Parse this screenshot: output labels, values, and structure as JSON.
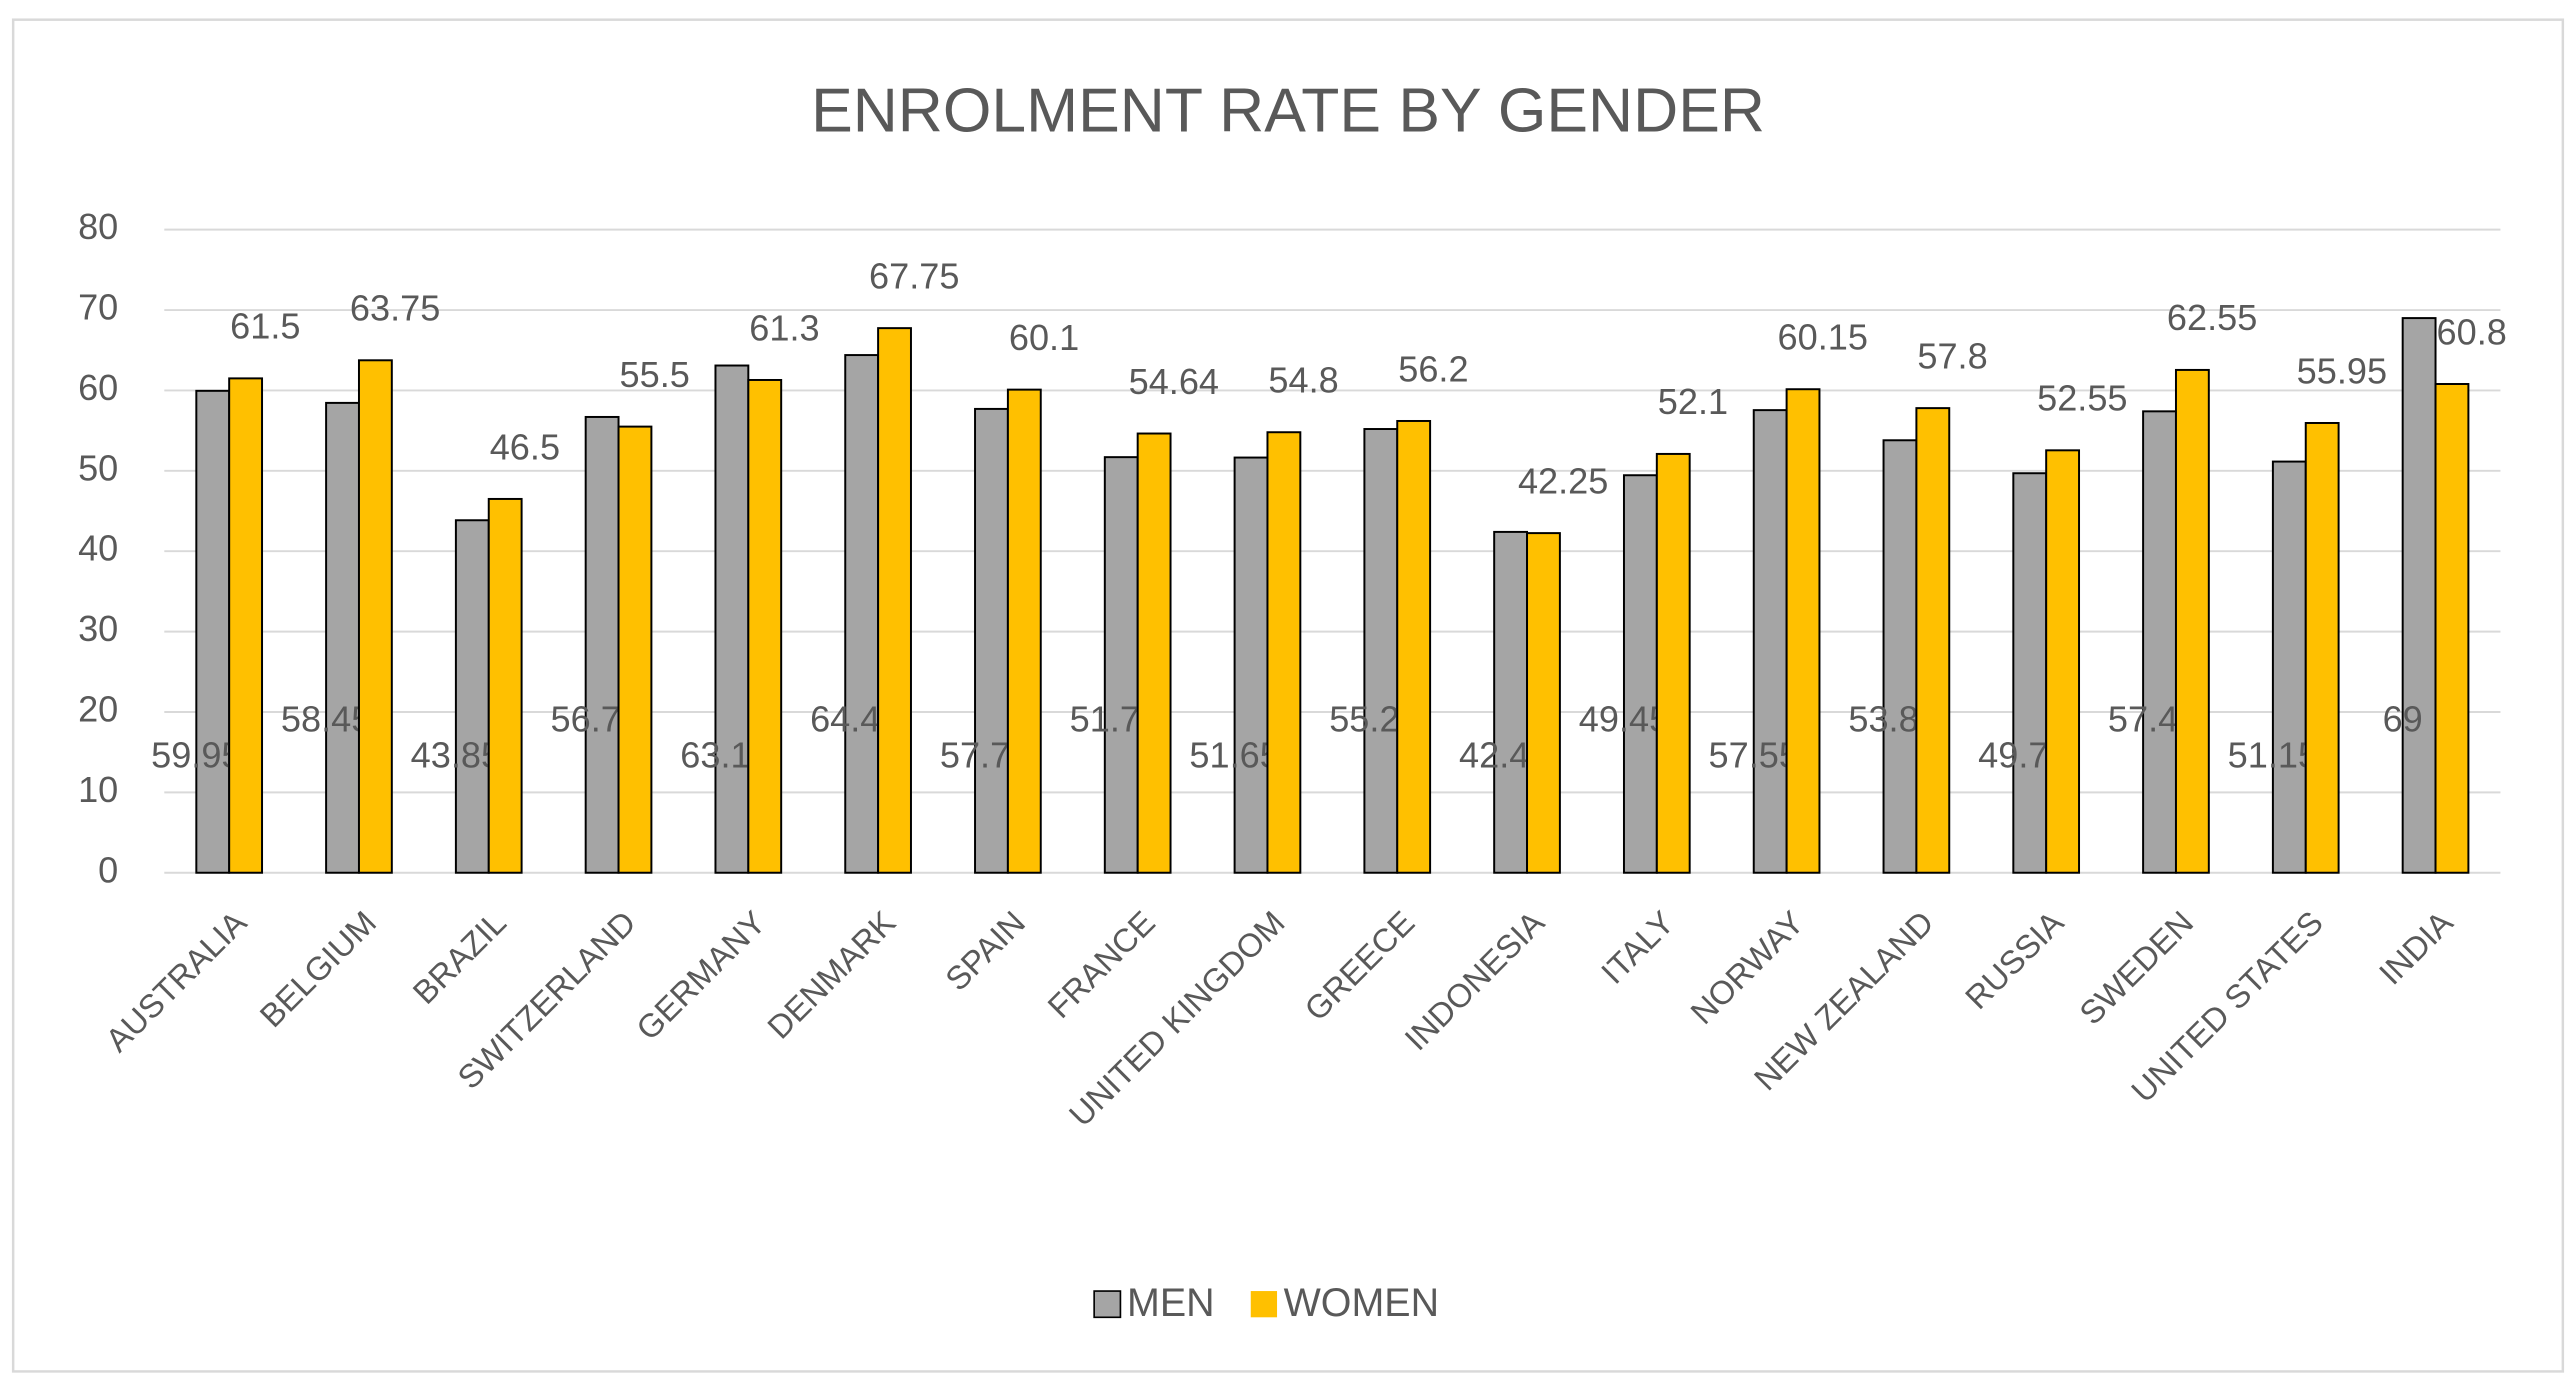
{
  "chart_data": {
    "type": "bar",
    "title": "ENROLMENT RATE BY GENDER",
    "categories": [
      "AUSTRALIA",
      "BELGIUM",
      "BRAZIL",
      "SWITZERLAND",
      "GERMANY",
      "DENMARK",
      "SPAIN",
      "FRANCE",
      "UNITED KINGDOM",
      "GREECE",
      "INDONESIA",
      "ITALY",
      "NORWAY",
      "NEW ZEALAND",
      "RUSSIA",
      "SWEDEN",
      "UNITED STATES",
      "INDIA"
    ],
    "series": [
      {
        "name": "MEN",
        "color": "#a5a5a5",
        "values": [
          59.95,
          58.45,
          43.85,
          56.7,
          63.1,
          64.4,
          57.7,
          51.7,
          51.65,
          55.2,
          42.4,
          49.45,
          57.55,
          53.8,
          49.7,
          57.4,
          51.15,
          69
        ]
      },
      {
        "name": "WOMEN",
        "color": "#ffc000",
        "values": [
          61.5,
          63.75,
          46.5,
          55.5,
          61.3,
          67.75,
          60.1,
          54.64,
          54.8,
          56.2,
          42.25,
          52.1,
          60.15,
          57.8,
          52.55,
          62.55,
          55.95,
          60.8
        ]
      }
    ],
    "ylim": [
      0,
      80
    ],
    "yticks": [
      0,
      10,
      20,
      30,
      40,
      50,
      60,
      70,
      80
    ],
    "grid": true,
    "legend": "bottom"
  }
}
